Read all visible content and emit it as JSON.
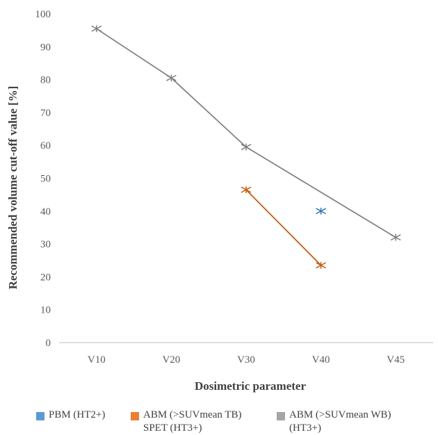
{
  "chart_data": {
    "type": "line",
    "title": "",
    "xlabel": "Dosimetric parameter",
    "ylabel": "Recommended volume cut-off value [%]",
    "categories": [
      "V10",
      "V20",
      "V30",
      "V40",
      "V45"
    ],
    "ylim": [
      0,
      100
    ],
    "yticks": [
      "0",
      "10",
      "20",
      "30",
      "40",
      "50",
      "60",
      "70",
      "80",
      "90",
      "100"
    ],
    "grid": false,
    "legend_position": "bottom",
    "series": [
      {
        "name": "PBM (HT2+)",
        "color": "#2E75B6",
        "points": [
          {
            "x": "V40",
            "y": 40
          }
        ],
        "marker": "star"
      },
      {
        "name": "ABM (>SUVmean TB)\nSPET (HT3+)",
        "color": "#C55A11",
        "points": [
          {
            "x": "V30",
            "y": 46.5
          },
          {
            "x": "V40",
            "y": 23.5
          }
        ],
        "marker": "star"
      },
      {
        "name": "ABM (>SUVmean WB)\n(HT3+)",
        "color": "#7F7F7F",
        "points": [
          {
            "x": "V10",
            "y": 95.5
          },
          {
            "x": "V20",
            "y": 80.5
          },
          {
            "x": "V30",
            "y": 59.5
          },
          {
            "x": "V45",
            "y": 32
          }
        ],
        "marker": "star"
      }
    ]
  },
  "legend": [
    {
      "label": "PBM (HT2+)",
      "color": "#5B9BD5"
    },
    {
      "label": "ABM (>SUVmean TB)\nSPET (HT3+)",
      "color": "#ED7D31"
    },
    {
      "label": "ABM (>SUVmean WB)\n(HT3+)",
      "color": "#A5A5A5"
    }
  ]
}
